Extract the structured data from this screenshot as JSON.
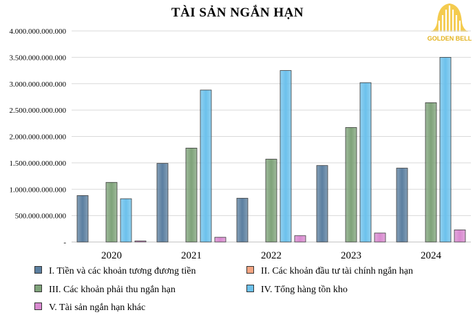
{
  "chart_data": {
    "type": "bar",
    "title": "TÀI SẢN NGẮN HẠN",
    "categories": [
      "2020",
      "2021",
      "2022",
      "2023",
      "2024"
    ],
    "ylim": [
      0,
      4000000000000
    ],
    "yticks": [
      0,
      500000000000,
      1000000000000,
      1500000000000,
      2000000000000,
      2500000000000,
      3000000000000,
      3500000000000,
      4000000000000
    ],
    "ytick_labels": [
      "-",
      "500.000.000.000",
      "1.000.000.000.000",
      "1.500.000.000.000",
      "2.000.000.000.000",
      "2.500.000.000.000",
      "3.000.000.000.000",
      "3.500.000.000.000",
      "4.000.000.000.000"
    ],
    "grid": true,
    "legend_position": "bottom",
    "series": [
      {
        "name": "I. Tiền và các khoản tương đương tiền",
        "color": "#5b7fa0",
        "values": [
          880000000000,
          1490000000000,
          830000000000,
          1450000000000,
          1400000000000
        ]
      },
      {
        "name": "II. Các khoản đầu tư tài chính ngắn hạn",
        "color": "#f4a582",
        "values": [
          0,
          0,
          0,
          0,
          0
        ]
      },
      {
        "name": "III. Các khoản phải thu ngắn hạn",
        "color": "#7fa37a",
        "values": [
          1130000000000,
          1780000000000,
          1570000000000,
          2170000000000,
          2640000000000
        ]
      },
      {
        "name": "IV. Tổng hàng tồn kho",
        "color": "#6cc1ec",
        "values": [
          820000000000,
          2880000000000,
          3250000000000,
          3020000000000,
          3500000000000
        ]
      },
      {
        "name": "V. Tài sản ngắn hạn khác",
        "color": "#d98ad0",
        "values": [
          20000000000,
          90000000000,
          120000000000,
          170000000000,
          230000000000
        ]
      }
    ]
  },
  "logo": {
    "text": "GOLDEN BELL",
    "color": "#e3b21d"
  }
}
